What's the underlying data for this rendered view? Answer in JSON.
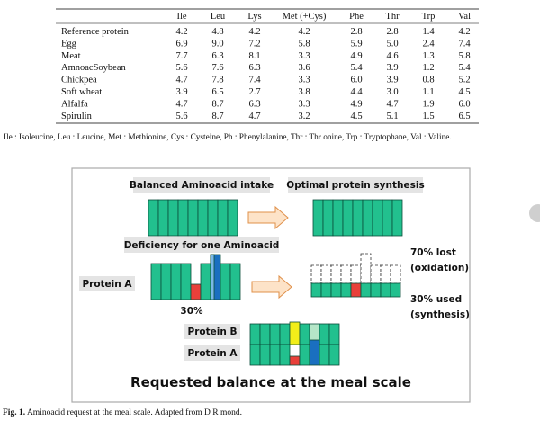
{
  "table": {
    "columns": [
      "Ile",
      "Leu",
      "Lys",
      "Met (+Cys)",
      "Phe",
      "Thr",
      "Trp",
      "Val"
    ],
    "rows": [
      [
        "Reference protein",
        "4.2",
        "4.8",
        "4.2",
        "4.2",
        "2.8",
        "2.8",
        "1.4",
        "4.2"
      ],
      [
        "Egg",
        "6.9",
        "9.0",
        "7.2",
        "5.8",
        "5.9",
        "5.0",
        "2.4",
        "7.4"
      ],
      [
        "Meat",
        "7.7",
        "6.3",
        "8.1",
        "3.3",
        "4.9",
        "4.6",
        "1.3",
        "5.8"
      ],
      [
        "AmnoacSoybean",
        "5.6",
        "7.6",
        "6.3",
        "3.6",
        "5.4",
        "3.9",
        "1.2",
        "5.4"
      ],
      [
        "Chickpea",
        "4.7",
        "7.8",
        "7.4",
        "3.3",
        "6.0",
        "3.9",
        "0.8",
        "5.2"
      ],
      [
        "Soft wheat",
        "3.9",
        "6.5",
        "2.7",
        "3.8",
        "4.4",
        "3.0",
        "1.1",
        "4.5"
      ],
      [
        "Alfalfa",
        "4.7",
        "8.7",
        "6.3",
        "3.3",
        "4.9",
        "4.7",
        "1.9",
        "6.0"
      ],
      [
        "Spirulin",
        "5.6",
        "8.7",
        "4.7",
        "3.2",
        "4.5",
        "5.1",
        "1.5",
        "6.5"
      ]
    ]
  },
  "footnote": "Ile : Isoleucine, Leu : Leucine, Met : Methionine, Cys : Cysteine, Ph   : Phenylalanine, Thr : Thr onine, Trp : Tryptophane, Val : Valine.",
  "diagram": {
    "balanced": "Balanced Aminoacid intake",
    "optimal": "Optimal protein synthesis",
    "deficiency": "Deficiency for one Aminoacid",
    "protein_a": "Protein A",
    "percent": "30%",
    "lost": [
      "70% lost",
      "(oxidation)"
    ],
    "used": [
      "30% used",
      "(synthesis)"
    ],
    "protein_b2": "Protein B",
    "protein_a2": "Protein A",
    "footer": "Requested balance at the meal scale"
  },
  "caption": {
    "label": "Fig. 1.",
    "text": "Aminoacid request at the meal scale. Adapted from D R mond."
  }
}
